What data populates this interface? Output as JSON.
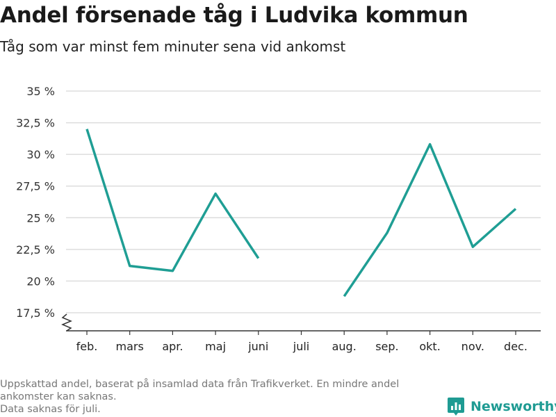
{
  "header": {
    "title": "Andel försenade tåg i Ludvika kommun",
    "subtitle": "Tåg som var minst fem minuter sena vid ankomst"
  },
  "footer": {
    "note_line1": "Uppskattad andel, baserat på insamlad data från Trafikverket. En mindre andel",
    "note_line2": "ankomster kan saknas.",
    "note_line3": "Data saknas för juli.",
    "brand": "Newsworthy"
  },
  "colors": {
    "line": "#1f9e94",
    "grid": "#dddddd",
    "axis": "#333333",
    "brand": "#1f9b93"
  },
  "chart_data": {
    "type": "line",
    "title": "Andel försenade tåg i Ludvika kommun",
    "subtitle": "Tåg som var minst fem minuter sena vid ankomst",
    "categories": [
      "feb.",
      "mars",
      "apr.",
      "maj",
      "juni",
      "juli",
      "aug.",
      "sep.",
      "okt.",
      "nov.",
      "dec."
    ],
    "series": [
      {
        "values": [
          32.0,
          21.2,
          20.8,
          26.9,
          21.8,
          null,
          18.8,
          23.8,
          30.8,
          22.7,
          25.7
        ]
      }
    ],
    "ylim": [
      16,
      35
    ],
    "yticks": [
      17.5,
      20,
      22.5,
      25,
      27.5,
      30,
      32.5,
      35
    ],
    "ytick_labels": [
      "17,5 %",
      "20 %",
      "22,5 %",
      "25 %",
      "27,5 %",
      "30 %",
      "32,5 %",
      "35 %"
    ],
    "axis_break": true,
    "grid": true,
    "legend": "none"
  }
}
